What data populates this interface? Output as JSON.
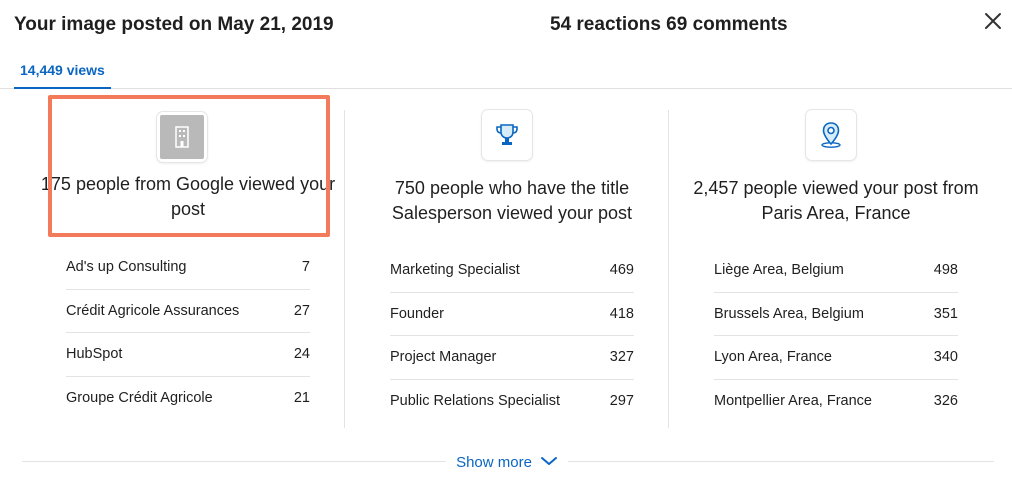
{
  "header": {
    "title": "Your image posted on May 21, 2019",
    "stats": "54 reactions 69 comments",
    "close_icon": "close-icon"
  },
  "tabs": [
    {
      "label": "14,449 views",
      "selected": true
    }
  ],
  "columns": [
    {
      "icon": "building-icon",
      "headline": "175 people from Google viewed your post",
      "highlighted": true,
      "rows": [
        {
          "name": "Ad's up Consulting",
          "count": "7"
        },
        {
          "name": "Crédit Agricole Assurances",
          "count": "27"
        },
        {
          "name": "HubSpot",
          "count": "24"
        },
        {
          "name": "Groupe Crédit Agricole",
          "count": "21"
        }
      ]
    },
    {
      "icon": "trophy-icon",
      "headline": "750 people who have the title Salesperson viewed your post",
      "rows": [
        {
          "name": "Marketing Specialist",
          "count": "469"
        },
        {
          "name": "Founder",
          "count": "418"
        },
        {
          "name": "Project Manager",
          "count": "327"
        },
        {
          "name": "Public Relations Specialist",
          "count": "297"
        }
      ]
    },
    {
      "icon": "location-pin-icon",
      "headline": "2,457 people viewed your post from Paris Area, France",
      "rows": [
        {
          "name": "Liège Area, Belgium",
          "count": "498"
        },
        {
          "name": "Brussels Area, Belgium",
          "count": "351"
        },
        {
          "name": "Lyon Area, France",
          "count": "340"
        },
        {
          "name": "Montpellier Area, France",
          "count": "326"
        }
      ]
    }
  ],
  "footer": {
    "show_more_label": "Show more",
    "chevron_icon": "chevron-down-icon"
  },
  "colors": {
    "accent": "#0a66c2",
    "highlight_border": "#f47a5c",
    "divider": "#e3e3e3"
  }
}
